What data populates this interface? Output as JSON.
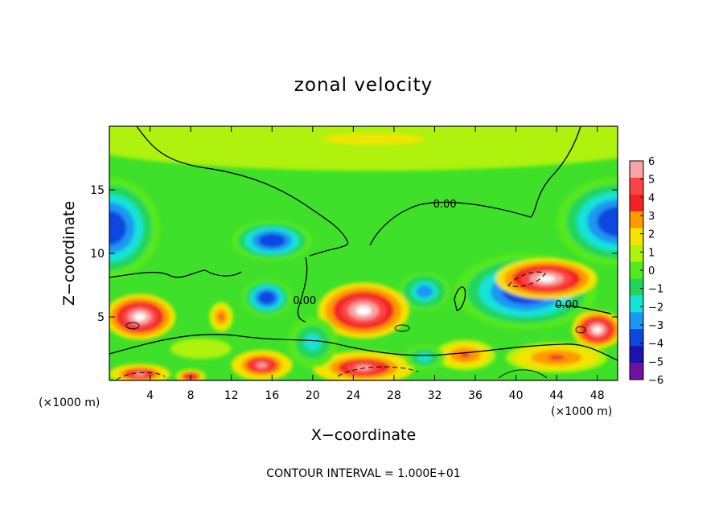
{
  "chart_data": {
    "type": "heatmap",
    "title": "zonal velocity",
    "xlabel": "X−coordinate",
    "ylabel": "Z−coordinate",
    "x_unit": "(×1000 m)",
    "y_unit": "(×1000 m)",
    "xlim": [
      0,
      50
    ],
    "ylim": [
      0,
      20
    ],
    "x_ticks": [
      4,
      8,
      12,
      16,
      20,
      24,
      28,
      32,
      36,
      40,
      44,
      48
    ],
    "y_ticks": [
      5,
      10,
      15
    ],
    "colorbar_levels": [
      6,
      5,
      4,
      3,
      2,
      1,
      0,
      -1,
      -2,
      -3,
      -4,
      -5,
      -6
    ],
    "colorbar_labels": [
      "6",
      "5",
      "4",
      "3",
      "2",
      "1",
      "0",
      "−1",
      "−2",
      "−3",
      "−4",
      "−5",
      "−6"
    ],
    "colorbar_colors": [
      "#f6a4a4",
      "#fb4444",
      "#f42222",
      "#ff9a00",
      "#f2e400",
      "#aef20e",
      "#54e81e",
      "#21d55c",
      "#14e3d8",
      "#1c97f3",
      "#1046df",
      "#1c12b0",
      "#7011a2"
    ],
    "contour_labels": [
      {
        "text": "0.00",
        "x": 33,
        "z": 13.6
      },
      {
        "text": "0.00",
        "x": 19.2,
        "z": 6.0
      },
      {
        "text": "0.00",
        "x": 45.0,
        "z": 5.7
      }
    ],
    "footer": "CONTOUR INTERVAL = 1.000E+01",
    "field_blobs": [
      {
        "x": 26,
        "z": 19,
        "rx": 30,
        "rz": 2.5,
        "v": 1.5
      },
      {
        "x": 0,
        "z": 12,
        "rx": 5,
        "rz": 4,
        "v": -4.5
      },
      {
        "x": 50,
        "z": 12.5,
        "rx": 6,
        "rz": 3.5,
        "v": -4.5
      },
      {
        "x": 16,
        "z": 11,
        "rx": 4,
        "rz": 1.6,
        "v": -4.5
      },
      {
        "x": 15.5,
        "z": 6.5,
        "rx": 2.5,
        "rz": 1.5,
        "v": -4.5
      },
      {
        "x": 41,
        "z": 7,
        "rx": 7,
        "rz": 3,
        "v": -4.5
      },
      {
        "x": 31,
        "z": 7,
        "rx": 2.5,
        "rz": 1.5,
        "v": -3.5
      },
      {
        "x": 3,
        "z": 5,
        "rx": 3.5,
        "rz": 1.8,
        "v": 7
      },
      {
        "x": 25,
        "z": 5.5,
        "rx": 4.5,
        "rz": 2.2,
        "v": 7
      },
      {
        "x": 43,
        "z": 8,
        "rx": 5,
        "rz": 1.6,
        "v": 7
      },
      {
        "x": 48,
        "z": 4,
        "rx": 2.5,
        "rz": 1.5,
        "v": 7
      },
      {
        "x": 11,
        "z": 5,
        "rx": 1.2,
        "rz": 1.2,
        "v": 3.5
      },
      {
        "x": 15,
        "z": 1.2,
        "rx": 3,
        "rz": 1.2,
        "v": 6
      },
      {
        "x": 25,
        "z": 1,
        "rx": 5,
        "rz": 1.3,
        "v": 6
      },
      {
        "x": 35,
        "z": 2,
        "rx": 3,
        "rz": 1.2,
        "v": 3.5
      },
      {
        "x": 44,
        "z": 1.8,
        "rx": 5,
        "rz": 1.2,
        "v": 4
      },
      {
        "x": 3,
        "z": 0.5,
        "rx": 3,
        "rz": 0.8,
        "v": 6
      },
      {
        "x": 8,
        "z": 0.3,
        "rx": 1.5,
        "rz": 0.6,
        "v": 5
      },
      {
        "x": 20,
        "z": 3,
        "rx": 2.5,
        "rz": 2,
        "v": -2.5
      },
      {
        "x": 31,
        "z": 1.8,
        "rx": 2,
        "rz": 1,
        "v": -2.5
      },
      {
        "x": 9,
        "z": 2.5,
        "rx": 3,
        "rz": 0.8,
        "v": 0.5
      }
    ]
  }
}
